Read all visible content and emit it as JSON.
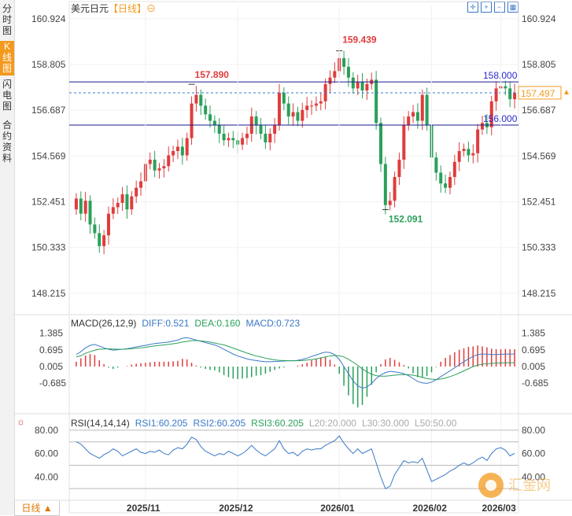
{
  "header": {
    "symbol": "美元日元",
    "period_label": "【日线】",
    "circle_icon": "⊖"
  },
  "sidebar": {
    "tabs": [
      {
        "label": "分时图",
        "active": false
      },
      {
        "label": "K线图",
        "active": true
      },
      {
        "label": "闪电图",
        "active": false
      },
      {
        "label": "合约资料",
        "active": false
      }
    ]
  },
  "toolbar": {
    "icons": [
      "crosshair-icon",
      "zoom-in-icon",
      "zoom-out-icon",
      "grid-icon"
    ]
  },
  "period_button": {
    "label": "日线",
    "caret": "▲"
  },
  "colors": {
    "up": "#e03c3c",
    "down": "#2aa05a",
    "hline": "#1a1a8c",
    "current": "#3a78c8",
    "accent": "#f39a1e"
  },
  "chart_data": [
    {
      "type": "candlestick",
      "title": "美元日元【日线】",
      "y_ticks": [
        "160.924",
        "158.805",
        "156.687",
        "154.569",
        "152.451",
        "150.333",
        "148.215"
      ],
      "ylim": [
        147.3,
        161.5
      ],
      "x_ticks": [
        "2025/11",
        "2025/12",
        "2026/01",
        "2026/02",
        "2026/03"
      ],
      "annotations": [
        {
          "label": "159.439",
          "value": 159.439,
          "kind": "high"
        },
        {
          "label": "157.890",
          "value": 157.89,
          "kind": "high"
        },
        {
          "label": "152.091",
          "value": 152.091,
          "kind": "low"
        }
      ],
      "horizontal_lines": [
        {
          "label": "158.000",
          "value": 158.0
        },
        {
          "label": "156.000",
          "value": 156.0
        }
      ],
      "current_price": {
        "label": "157.497",
        "value": 157.497
      },
      "closes": [
        152.6,
        151.9,
        152.5,
        151.4,
        151.0,
        150.4,
        150.9,
        151.9,
        152.2,
        152.4,
        152.8,
        152.1,
        152.7,
        153.1,
        153.4,
        154.2,
        154.4,
        153.9,
        154.0,
        154.1,
        154.6,
        154.8,
        155.0,
        154.6,
        155.4,
        157.0,
        157.4,
        156.9,
        156.5,
        156.2,
        156.0,
        155.6,
        155.3,
        155.4,
        155.3,
        155.1,
        155.4,
        155.6,
        156.4,
        156.0,
        155.6,
        155.2,
        155.6,
        156.0,
        157.5,
        157.0,
        156.4,
        156.6,
        156.2,
        156.7,
        156.9,
        156.9,
        157.0,
        157.1,
        157.9,
        158.2,
        158.5,
        159.1,
        158.7,
        158.2,
        157.7,
        158.0,
        157.6,
        157.9,
        158.1,
        156.1,
        154.2,
        152.3,
        152.5,
        153.6,
        154.4,
        156.0,
        156.4,
        156.6,
        156.2,
        157.4,
        156.0,
        154.5,
        153.8,
        153.3,
        153.1,
        153.6,
        154.3,
        154.8,
        154.9,
        154.6,
        154.7,
        155.8,
        156.1,
        155.9,
        157.1,
        157.7,
        157.8,
        157.7,
        157.2,
        157.5
      ],
      "macd": {
        "legend": {
          "title": "MACD(26,12,9)",
          "diff": "DIFF:0.521",
          "dea": "DEA:0.160",
          "macd": "MACD:0.723"
        },
        "y_ticks": [
          "1.385",
          "0.695",
          "0.005",
          "-0.685"
        ],
        "ylim": [
          -1.9,
          1.9
        ],
        "diff": [
          0.5,
          0.62,
          0.78,
          0.88,
          0.92,
          0.85,
          0.78,
          0.72,
          0.68,
          0.7,
          0.72,
          0.74,
          0.78,
          0.82,
          0.85,
          0.88,
          0.92,
          0.96,
          0.98,
          1.0,
          1.02,
          1.06,
          1.1,
          1.18,
          1.2,
          1.16,
          1.1,
          1.05,
          1.0,
          0.95,
          0.9,
          0.82,
          0.72,
          0.62,
          0.52,
          0.44,
          0.38,
          0.32,
          0.28,
          0.25,
          0.22,
          0.2,
          0.2,
          0.21,
          0.22,
          0.23,
          0.24,
          0.24,
          0.26,
          0.3,
          0.35,
          0.42,
          0.48,
          0.55,
          0.6,
          0.58,
          0.5,
          0.3,
          0.0,
          -0.3,
          -0.6,
          -0.8,
          -0.9,
          -0.85,
          -0.7,
          -0.5,
          -0.35,
          -0.25,
          -0.2,
          -0.22,
          -0.25,
          -0.3,
          -0.38,
          -0.5,
          -0.62,
          -0.68,
          -0.7,
          -0.65,
          -0.55,
          -0.42,
          -0.3,
          -0.18,
          -0.05,
          0.08,
          0.2,
          0.32,
          0.42,
          0.5,
          0.52,
          0.52,
          0.5,
          0.5,
          0.51,
          0.52,
          0.52,
          0.521
        ],
        "dea": [
          0.4,
          0.45,
          0.55,
          0.62,
          0.68,
          0.72,
          0.73,
          0.74,
          0.73,
          0.72,
          0.72,
          0.73,
          0.74,
          0.76,
          0.78,
          0.8,
          0.83,
          0.86,
          0.88,
          0.9,
          0.92,
          0.95,
          0.98,
          1.02,
          1.05,
          1.08,
          1.08,
          1.07,
          1.05,
          1.02,
          0.98,
          0.94,
          0.9,
          0.84,
          0.77,
          0.7,
          0.63,
          0.56,
          0.5,
          0.44,
          0.4,
          0.35,
          0.31,
          0.28,
          0.26,
          0.25,
          0.24,
          0.24,
          0.24,
          0.25,
          0.27,
          0.29,
          0.32,
          0.36,
          0.4,
          0.44,
          0.46,
          0.45,
          0.4,
          0.3,
          0.18,
          0.05,
          -0.1,
          -0.22,
          -0.32,
          -0.38,
          -0.4,
          -0.4,
          -0.38,
          -0.36,
          -0.34,
          -0.33,
          -0.34,
          -0.36,
          -0.4,
          -0.45,
          -0.5,
          -0.53,
          -0.54,
          -0.52,
          -0.48,
          -0.42,
          -0.35,
          -0.27,
          -0.18,
          -0.09,
          0.0,
          0.06,
          0.1,
          0.12,
          0.13,
          0.14,
          0.15,
          0.155,
          0.158,
          0.16
        ]
      },
      "rsi": {
        "legend": {
          "title": "RSI(14,14,14)",
          "rsi1": "RSI1:60.205",
          "rsi2": "RSI2:60.205",
          "rsi3": "RSI3:60.205",
          "l20": "L20:20.000",
          "l30": "L30:30.000",
          "l50": "L50:50.00"
        },
        "y_ticks": [
          "80.00",
          "60.00",
          "40.00"
        ],
        "ylim": [
          20,
          88
        ],
        "values": [
          70,
          68,
          64,
          60,
          58,
          56,
          59,
          61,
          64,
          62,
          58,
          60,
          62,
          64,
          61,
          60,
          62,
          61,
          63,
          60,
          59,
          63,
          65,
          64,
          68,
          74,
          72,
          66,
          62,
          60,
          58,
          60,
          59,
          62,
          60,
          58,
          60,
          63,
          67,
          63,
          60,
          58,
          61,
          64,
          71,
          64,
          60,
          61,
          58,
          62,
          64,
          63,
          64,
          64,
          67,
          69,
          71,
          75,
          69,
          64,
          60,
          64,
          60,
          62,
          64,
          52,
          40,
          30,
          32,
          42,
          48,
          54,
          52,
          53,
          52,
          56,
          46,
          36,
          38,
          40,
          42,
          45,
          47,
          50,
          52,
          50,
          52,
          55,
          57,
          54,
          60,
          64,
          65,
          63,
          58,
          60.205
        ]
      }
    }
  ]
}
